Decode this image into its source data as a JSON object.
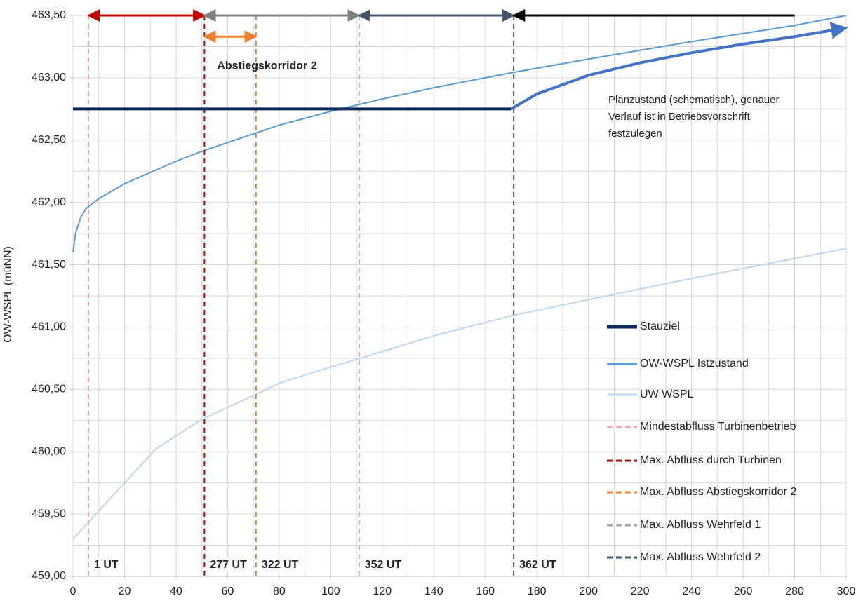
{
  "chart_data": {
    "type": "line",
    "y_label": "OW-WSPL (müNN)",
    "xlim": [
      0,
      300
    ],
    "ylim": [
      459.0,
      463.5
    ],
    "xticks": [
      0,
      20,
      40,
      60,
      80,
      100,
      120,
      140,
      160,
      180,
      200,
      220,
      240,
      260,
      280,
      300
    ],
    "yticks": [
      {
        "value": 459.0,
        "label": "459,00"
      },
      {
        "value": 459.5,
        "label": "459,50"
      },
      {
        "value": 460.0,
        "label": "460,00"
      },
      {
        "value": 460.5,
        "label": "460,50"
      },
      {
        "value": 461.0,
        "label": "461,00"
      },
      {
        "value": 461.5,
        "label": "461,50"
      },
      {
        "value": 462.0,
        "label": "462,00"
      },
      {
        "value": 462.5,
        "label": "462,50"
      },
      {
        "value": 463.0,
        "label": "463,00"
      },
      {
        "value": 463.5,
        "label": "463,50"
      }
    ],
    "grid": true,
    "xgrid_step": 10,
    "ygrid_step": 0.25,
    "series": [
      {
        "name": "Stauziel",
        "color": "#0d2a5e",
        "width": 4,
        "x": [
          0,
          170
        ],
        "values": [
          462.75,
          462.75
        ]
      },
      {
        "name": "OW-WSPL Istzustand",
        "color": "#5b9bd5",
        "width": 2,
        "x": [
          0,
          1,
          3,
          5,
          10,
          20,
          30,
          40,
          50,
          60,
          70,
          80,
          100,
          110,
          120,
          140,
          160,
          170,
          200,
          240,
          280,
          300
        ],
        "values": [
          461.6,
          461.75,
          461.88,
          461.95,
          462.03,
          462.15,
          462.24,
          462.33,
          462.41,
          462.48,
          462.55,
          462.62,
          462.73,
          462.78,
          462.83,
          462.92,
          463.0,
          463.04,
          463.15,
          463.29,
          463.42,
          463.5
        ]
      },
      {
        "name": "UW WSPL",
        "color": "#bdd7ee",
        "width": 2,
        "x": [
          0,
          32,
          50,
          70,
          80,
          100,
          110,
          140,
          170,
          200,
          240,
          280,
          300
        ],
        "values": [
          459.3,
          460.02,
          460.26,
          460.45,
          460.55,
          460.68,
          460.74,
          460.93,
          461.09,
          461.22,
          461.39,
          461.55,
          461.63
        ]
      }
    ],
    "plan_curve": {
      "color": "#4472c4",
      "width": 4,
      "x": [
        170,
        180,
        200,
        220,
        240,
        260,
        280,
        300
      ],
      "values": [
        462.75,
        462.87,
        463.02,
        463.12,
        463.2,
        463.27,
        463.33,
        463.4
      ],
      "annotation": [
        "Planzustand (schematisch), genauer",
        "Verlauf ist in Betriebsvorschrift",
        "festzulegen"
      ]
    },
    "vlines": [
      {
        "name": "Mindestabfluss Turbinenbetrieb",
        "x": 6,
        "color": "#f4a6a6",
        "label": "1 UT"
      },
      {
        "name": "Max. Abfluss durch Turbinen",
        "x": 51,
        "color": "#c00000",
        "label": "277 UT"
      },
      {
        "name": "Max. Abfluss Abstiegskorridor 2",
        "x": 71,
        "color": "#ed7d31",
        "label": "322 UT"
      },
      {
        "name": "Max. Abfluss Wehrfeld 1",
        "x": 111,
        "color": "#a5a5a5",
        "label": "352 UT"
      },
      {
        "name": "Max. Abfluss Wehrfeld 2",
        "x": 171,
        "color": "#44546a",
        "label": "362 UT"
      }
    ],
    "ranges": [
      {
        "from": 6,
        "to": 51,
        "y": 463.5,
        "color": "#c00000",
        "heads": "both"
      },
      {
        "from": 51,
        "to": 111,
        "y": 463.5,
        "color": "#7f7f7f",
        "heads": "both"
      },
      {
        "from": 111,
        "to": 171,
        "y": 463.5,
        "color": "#44546a",
        "heads": "both"
      },
      {
        "from": 280,
        "to": 171,
        "y": 463.5,
        "color": "#000000",
        "heads": "end"
      },
      {
        "from": 51,
        "to": 71,
        "y": 463.33,
        "color": "#ed7d31",
        "heads": "both",
        "label": "Abstiegskorridor 2"
      }
    ]
  }
}
